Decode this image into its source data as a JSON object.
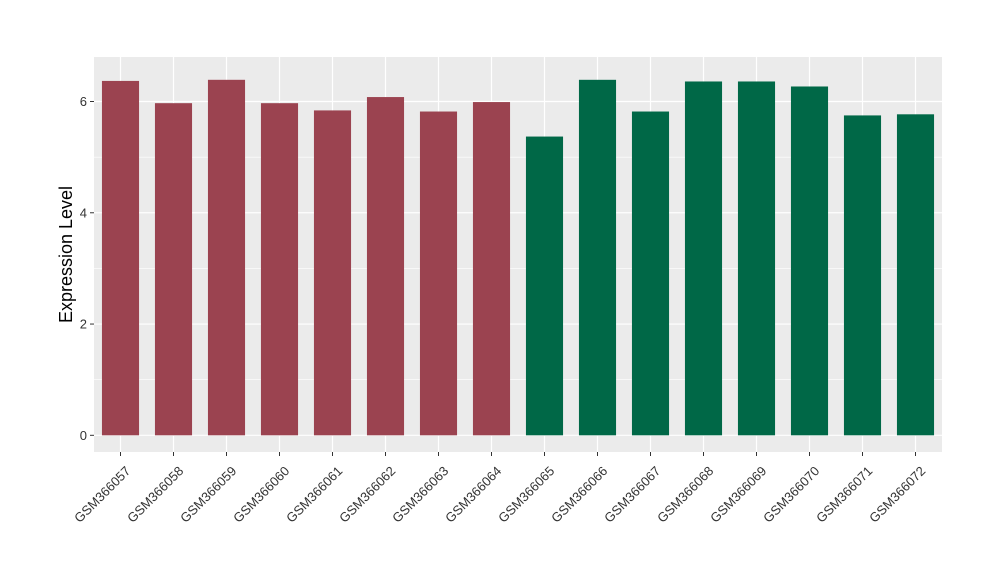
{
  "chart_data": {
    "type": "bar",
    "title": "",
    "xlabel": "",
    "ylabel": "Expression Level",
    "ylim": [
      -0.3,
      6.8
    ],
    "yticks": [
      0,
      2,
      4,
      6
    ],
    "grid": true,
    "categories": [
      "GSM366057",
      "GSM366058",
      "GSM366059",
      "GSM366060",
      "GSM366061",
      "GSM366062",
      "GSM366063",
      "GSM366064",
      "GSM366065",
      "GSM366066",
      "GSM366067",
      "GSM366068",
      "GSM366069",
      "GSM366070",
      "GSM366071",
      "GSM366072"
    ],
    "values": [
      6.37,
      5.97,
      6.39,
      5.97,
      5.84,
      6.08,
      5.82,
      5.99,
      5.37,
      6.39,
      5.82,
      6.36,
      6.36,
      6.27,
      5.75,
      5.77
    ],
    "bar_colors": [
      "#9b4350",
      "#9b4350",
      "#9b4350",
      "#9b4350",
      "#9b4350",
      "#9b4350",
      "#9b4350",
      "#9b4350",
      "#006847",
      "#006847",
      "#006847",
      "#006847",
      "#006847",
      "#006847",
      "#006847",
      "#006847"
    ],
    "panel_background": "#ebebeb",
    "grid_color": "#ffffff"
  }
}
